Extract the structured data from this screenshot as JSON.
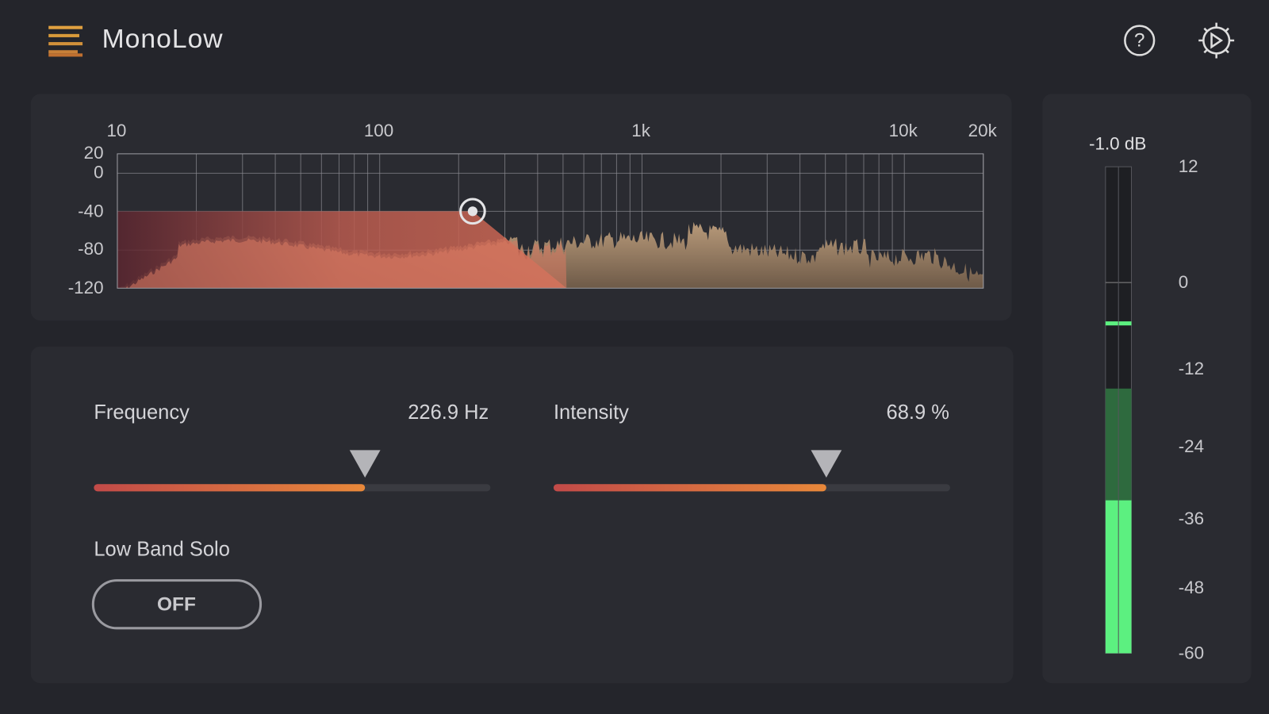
{
  "header": {
    "title": "MonoLow"
  },
  "spectrum": {
    "x_labels": [
      "10",
      "100",
      "1k",
      "10k",
      "20k"
    ],
    "y_labels": [
      "20",
      "0",
      "-40",
      "-80",
      "-120"
    ]
  },
  "controls": {
    "frequency": {
      "label": "Frequency",
      "value": "226.9 Hz"
    },
    "intensity": {
      "label": "Intensity",
      "value": "68.9 %"
    },
    "solo": {
      "label": "Low Band Solo",
      "button": "OFF"
    }
  },
  "meter": {
    "readout": "-1.0 dB",
    "scale": [
      "12",
      "0",
      "-12",
      "-24",
      "-36",
      "-48",
      "-60"
    ]
  }
}
